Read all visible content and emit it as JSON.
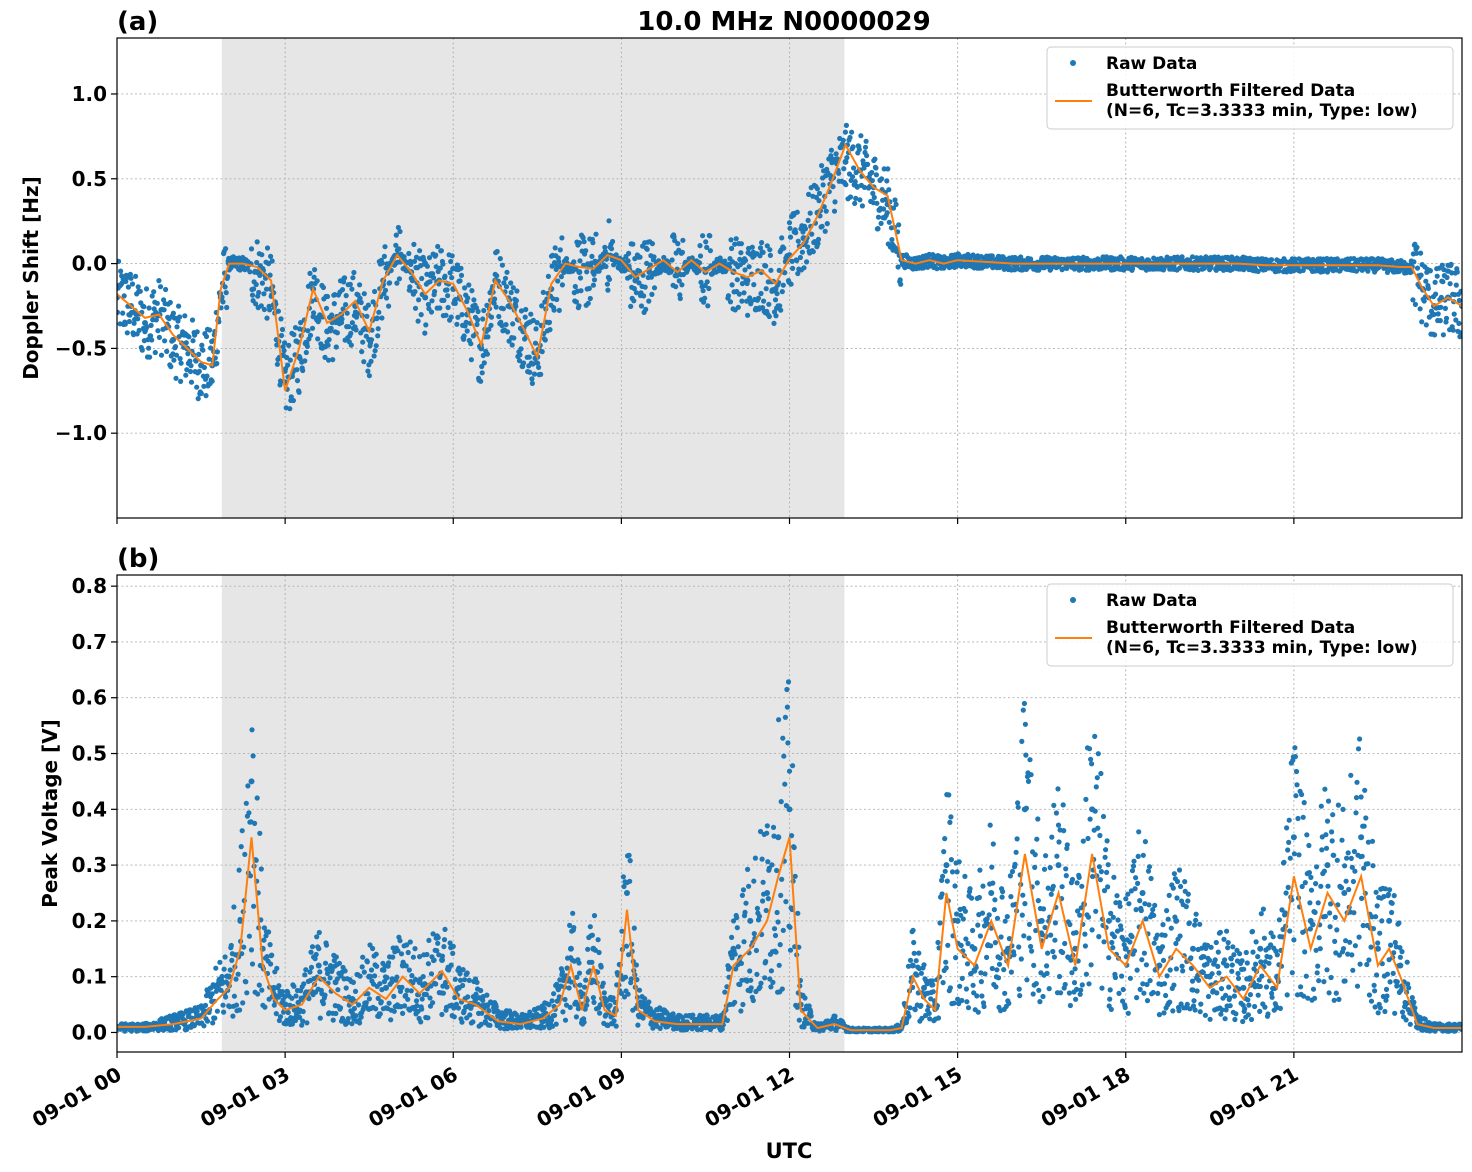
{
  "figure": {
    "title": "10.0 MHz N0000029",
    "xlabel": "UTC"
  },
  "colors": {
    "raw": "#1f77b4",
    "filtered": "#ff7f0e",
    "shade": "#e6e6e6",
    "grid": "#b0b0b0"
  },
  "chart_data": [
    {
      "type": "scatter",
      "panel_label": "(a)",
      "ylabel": "Doppler Shift [Hz]",
      "xlim": [
        0,
        24
      ],
      "ylim": [
        -1.5,
        1.33
      ],
      "yticks": [
        -1.0,
        -0.5,
        0.0,
        0.5,
        1.0
      ],
      "ytick_labels": [
        "−1.0",
        "−0.5",
        "0.0",
        "0.5",
        "1.0"
      ],
      "xticks": [
        0,
        3,
        6,
        9,
        12,
        15,
        18,
        21
      ],
      "xtick_labels": [
        "09-01 00",
        "09-01 03",
        "09-01 06",
        "09-01 09",
        "09-01 12",
        "09-01 15",
        "09-01 18",
        "09-01 21"
      ],
      "grid": true,
      "legend_position": "top-right",
      "shaded_region_hours": [
        1.87,
        12.98
      ],
      "series": [
        {
          "name": "Raw Data",
          "style": "markers",
          "x": [
            0,
            0.25,
            0.5,
            0.75,
            1.0,
            1.25,
            1.5,
            1.7,
            1.85,
            2.0,
            2.25,
            2.5,
            2.75,
            3.0,
            3.25,
            3.5,
            3.75,
            4.0,
            4.25,
            4.5,
            4.75,
            5.0,
            5.25,
            5.5,
            5.75,
            6.0,
            6.25,
            6.5,
            6.75,
            7.0,
            7.25,
            7.5,
            7.75,
            8.0,
            8.25,
            8.5,
            8.75,
            9.0,
            9.25,
            9.5,
            9.75,
            10.0,
            10.25,
            10.5,
            10.75,
            11.0,
            11.25,
            11.5,
            11.75,
            12.0,
            12.25,
            12.5,
            12.75,
            13.0,
            13.25,
            13.5,
            13.75,
            14.0,
            14.25,
            14.5,
            14.75,
            15.0,
            15.5,
            16.0,
            16.5,
            17.0,
            17.5,
            18.0,
            18.5,
            19.0,
            19.5,
            20.0,
            20.5,
            21.0,
            21.5,
            22.0,
            22.5,
            22.9,
            23.1,
            23.3,
            23.5,
            23.75,
            24.0
          ],
          "y": [
            -0.2,
            -0.25,
            -0.35,
            -0.3,
            -0.45,
            -0.5,
            -0.6,
            -0.6,
            -0.2,
            0.0,
            0.0,
            -0.05,
            -0.15,
            -0.7,
            -0.55,
            -0.15,
            -0.4,
            -0.3,
            -0.25,
            -0.45,
            -0.1,
            0.05,
            -0.05,
            -0.2,
            -0.1,
            -0.15,
            -0.3,
            -0.5,
            -0.1,
            -0.25,
            -0.4,
            -0.55,
            -0.15,
            0.0,
            -0.05,
            -0.05,
            0.05,
            0.0,
            -0.1,
            -0.05,
            0.0,
            -0.05,
            0.0,
            -0.05,
            0.0,
            -0.05,
            -0.1,
            -0.05,
            -0.15,
            0.05,
            0.15,
            0.3,
            0.5,
            0.6,
            0.55,
            0.45,
            0.35,
            0.02,
            0.0,
            0.02,
            0.0,
            0.02,
            0.01,
            0.0,
            0.0,
            0.0,
            0.0,
            0.0,
            0.0,
            0.0,
            0.0,
            0.0,
            -0.01,
            -0.01,
            -0.01,
            -0.01,
            -0.01,
            -0.02,
            -0.02,
            -0.15,
            -0.25,
            -0.2,
            -0.25
          ]
        },
        {
          "name": "Butterworth Filtered Data\n(N=6, Tc=3.3333 min, Type: low)",
          "style": "line",
          "x": [
            0,
            0.25,
            0.5,
            0.75,
            1.0,
            1.25,
            1.5,
            1.7,
            1.85,
            2.0,
            2.25,
            2.5,
            2.75,
            3.0,
            3.25,
            3.5,
            3.75,
            4.0,
            4.25,
            4.5,
            4.75,
            5.0,
            5.25,
            5.5,
            5.75,
            6.0,
            6.25,
            6.5,
            6.75,
            7.0,
            7.25,
            7.5,
            7.75,
            8.0,
            8.25,
            8.5,
            8.75,
            9.0,
            9.25,
            9.5,
            9.75,
            10.0,
            10.25,
            10.5,
            10.75,
            11.0,
            11.25,
            11.5,
            11.75,
            12.0,
            12.25,
            12.5,
            12.75,
            13.0,
            13.25,
            13.5,
            13.75,
            14.0,
            14.25,
            14.5,
            14.75,
            15.0,
            15.5,
            16.0,
            16.5,
            17.0,
            17.5,
            18.0,
            18.5,
            19.0,
            19.5,
            20.0,
            20.5,
            21.0,
            21.5,
            22.0,
            22.5,
            22.9,
            23.1,
            23.3,
            23.5,
            23.75,
            24.0
          ],
          "y": [
            -0.18,
            -0.25,
            -0.32,
            -0.3,
            -0.42,
            -0.5,
            -0.58,
            -0.6,
            -0.15,
            0.0,
            0.0,
            -0.02,
            -0.1,
            -0.75,
            -0.5,
            -0.15,
            -0.35,
            -0.3,
            -0.22,
            -0.4,
            -0.1,
            0.05,
            -0.05,
            -0.18,
            -0.1,
            -0.12,
            -0.28,
            -0.48,
            -0.1,
            -0.22,
            -0.38,
            -0.55,
            -0.12,
            0.0,
            -0.02,
            -0.03,
            0.05,
            0.02,
            -0.08,
            -0.03,
            0.02,
            -0.05,
            0.02,
            -0.05,
            0.0,
            -0.05,
            -0.08,
            -0.04,
            -0.12,
            0.03,
            0.12,
            0.28,
            0.48,
            0.7,
            0.55,
            0.45,
            0.4,
            0.02,
            0.0,
            0.02,
            0.0,
            0.02,
            0.01,
            0.0,
            0.0,
            0.0,
            0.0,
            0.0,
            0.0,
            0.0,
            0.0,
            0.0,
            -0.01,
            -0.01,
            -0.01,
            -0.01,
            -0.01,
            -0.02,
            -0.02,
            -0.15,
            -0.25,
            -0.2,
            -0.25
          ]
        }
      ]
    },
    {
      "type": "scatter",
      "panel_label": "(b)",
      "ylabel": "Peak Voltage [V]",
      "xlim": [
        0,
        24
      ],
      "ylim": [
        -0.035,
        0.82
      ],
      "yticks": [
        0.0,
        0.1,
        0.2,
        0.3,
        0.4,
        0.5,
        0.6,
        0.7,
        0.8
      ],
      "ytick_labels": [
        "0.0",
        "0.1",
        "0.2",
        "0.3",
        "0.4",
        "0.5",
        "0.6",
        "0.7",
        "0.8"
      ],
      "xticks": [
        0,
        3,
        6,
        9,
        12,
        15,
        18,
        21
      ],
      "xtick_labels": [
        "09-01 00",
        "09-01 03",
        "09-01 06",
        "09-01 09",
        "09-01 12",
        "09-01 15",
        "09-01 18",
        "09-01 21"
      ],
      "grid": true,
      "legend_position": "top-right",
      "shaded_region_hours": [
        1.87,
        12.98
      ],
      "series": [
        {
          "name": "Raw Data",
          "style": "markers",
          "x": [
            0,
            0.5,
            1.0,
            1.5,
            1.8,
            2.0,
            2.2,
            2.4,
            2.6,
            2.8,
            3.0,
            3.3,
            3.6,
            3.9,
            4.2,
            4.5,
            4.8,
            5.1,
            5.4,
            5.8,
            6.1,
            6.4,
            6.8,
            7.2,
            7.6,
            7.9,
            8.1,
            8.3,
            8.5,
            8.7,
            8.9,
            9.1,
            9.3,
            9.6,
            10.0,
            10.4,
            10.8,
            11.0,
            11.3,
            11.6,
            11.8,
            12.0,
            12.2,
            12.5,
            12.8,
            13.1,
            13.5,
            13.8,
            14.0,
            14.2,
            14.4,
            14.6,
            14.8,
            15.0,
            15.3,
            15.6,
            15.9,
            16.2,
            16.5,
            16.8,
            17.1,
            17.4,
            17.7,
            18.0,
            18.3,
            18.6,
            18.9,
            19.2,
            19.5,
            19.8,
            20.1,
            20.4,
            20.7,
            21.0,
            21.3,
            21.6,
            21.9,
            22.2,
            22.5,
            22.7,
            22.9,
            23.2,
            23.5,
            24.0
          ],
          "y": [
            0.01,
            0.01,
            0.02,
            0.03,
            0.08,
            0.1,
            0.2,
            0.45,
            0.15,
            0.08,
            0.05,
            0.06,
            0.12,
            0.09,
            0.06,
            0.1,
            0.08,
            0.12,
            0.09,
            0.13,
            0.08,
            0.06,
            0.03,
            0.02,
            0.03,
            0.06,
            0.15,
            0.05,
            0.15,
            0.05,
            0.04,
            0.25,
            0.05,
            0.03,
            0.02,
            0.02,
            0.02,
            0.15,
            0.2,
            0.25,
            0.35,
            0.4,
            0.05,
            0.01,
            0.02,
            0.005,
            0.005,
            0.005,
            0.01,
            0.12,
            0.08,
            0.05,
            0.3,
            0.2,
            0.15,
            0.25,
            0.15,
            0.4,
            0.2,
            0.3,
            0.15,
            0.4,
            0.2,
            0.15,
            0.25,
            0.12,
            0.2,
            0.15,
            0.1,
            0.12,
            0.08,
            0.15,
            0.1,
            0.35,
            0.2,
            0.3,
            0.25,
            0.35,
            0.15,
            0.2,
            0.12,
            0.02,
            0.01,
            0.01
          ]
        },
        {
          "name": "Butterworth Filtered Data\n(N=6, Tc=3.3333 min, Type: low)",
          "style": "line",
          "x": [
            0,
            0.5,
            1.0,
            1.5,
            1.8,
            2.0,
            2.2,
            2.4,
            2.6,
            2.8,
            3.0,
            3.3,
            3.6,
            3.9,
            4.2,
            4.5,
            4.8,
            5.1,
            5.4,
            5.8,
            6.1,
            6.4,
            6.8,
            7.2,
            7.6,
            7.9,
            8.1,
            8.3,
            8.5,
            8.7,
            8.9,
            9.1,
            9.3,
            9.6,
            10.0,
            10.4,
            10.8,
            11.0,
            11.3,
            11.6,
            11.8,
            12.0,
            12.2,
            12.5,
            12.8,
            13.1,
            13.5,
            13.8,
            14.0,
            14.2,
            14.4,
            14.6,
            14.8,
            15.0,
            15.3,
            15.6,
            15.9,
            16.2,
            16.5,
            16.8,
            17.1,
            17.4,
            17.7,
            18.0,
            18.3,
            18.6,
            18.9,
            19.2,
            19.5,
            19.8,
            20.1,
            20.4,
            20.7,
            21.0,
            21.3,
            21.6,
            21.9,
            22.2,
            22.5,
            22.7,
            22.9,
            23.2,
            23.5,
            24.0
          ],
          "y": [
            0.01,
            0.01,
            0.015,
            0.025,
            0.06,
            0.08,
            0.15,
            0.35,
            0.12,
            0.06,
            0.04,
            0.05,
            0.1,
            0.07,
            0.05,
            0.08,
            0.06,
            0.1,
            0.07,
            0.11,
            0.06,
            0.05,
            0.02,
            0.015,
            0.025,
            0.05,
            0.12,
            0.04,
            0.12,
            0.04,
            0.03,
            0.22,
            0.04,
            0.02,
            0.015,
            0.015,
            0.015,
            0.12,
            0.15,
            0.2,
            0.28,
            0.35,
            0.04,
            0.008,
            0.015,
            0.004,
            0.004,
            0.004,
            0.008,
            0.1,
            0.06,
            0.04,
            0.25,
            0.15,
            0.12,
            0.2,
            0.12,
            0.32,
            0.15,
            0.25,
            0.12,
            0.32,
            0.15,
            0.12,
            0.2,
            0.1,
            0.15,
            0.12,
            0.08,
            0.1,
            0.06,
            0.12,
            0.08,
            0.28,
            0.15,
            0.25,
            0.2,
            0.28,
            0.12,
            0.15,
            0.1,
            0.015,
            0.008,
            0.008
          ]
        }
      ]
    }
  ]
}
